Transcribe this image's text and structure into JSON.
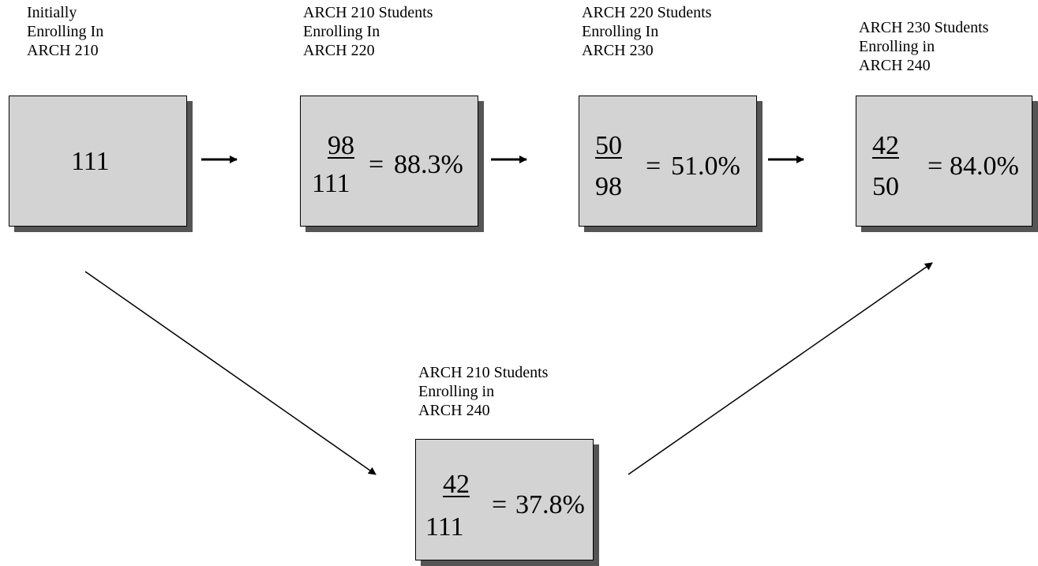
{
  "nodes": [
    {
      "caption": "Initially\nEnrolling In\nARCH 210",
      "value": "111"
    },
    {
      "caption": "ARCH 210 Students\nEnrolling In\nARCH 220",
      "numerator": "98",
      "denominator": "111",
      "equals": "=",
      "percent": "88.3%"
    },
    {
      "caption": "ARCH 220 Students\nEnrolling In\nARCH 230",
      "numerator": "50",
      "denominator": "98",
      "equals": "=",
      "percent": "51.0%"
    },
    {
      "caption": "ARCH 230 Students\nEnrolling in\nARCH 240",
      "numerator": "42",
      "denominator": "50",
      "equals": "=",
      "percent": "84.0%"
    },
    {
      "caption": "ARCH 210 Students\nEnrolling in\nARCH 240",
      "numerator": "42",
      "denominator": "111",
      "equals": "=",
      "percent": "37.8%"
    }
  ],
  "colors": {
    "box_fill": "#d3d3d3",
    "box_shadow": "#555555",
    "stroke": "#000000"
  }
}
